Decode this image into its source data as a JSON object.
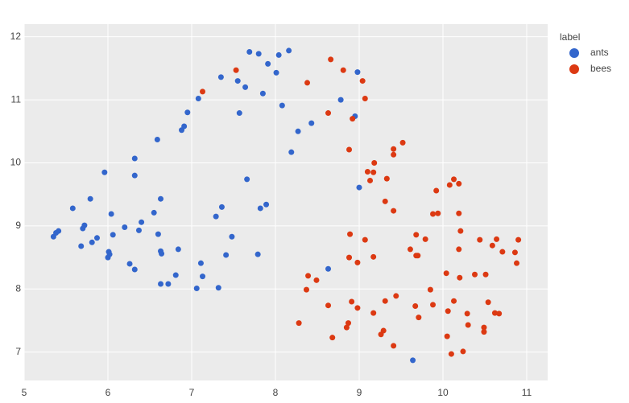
{
  "chart_data": {
    "type": "scatter",
    "legend_title": "label",
    "legend_position": "right",
    "xlim": [
      5,
      11.25
    ],
    "ylim": [
      6.55,
      12.2
    ],
    "xticks": [
      5,
      6,
      7,
      8,
      9,
      10,
      11
    ],
    "yticks": [
      7,
      8,
      9,
      10,
      11,
      12
    ],
    "grid": true,
    "series": [
      {
        "name": "ants",
        "color": "#3366cc",
        "x": [
          5.35,
          5.38,
          5.41,
          5.58,
          5.68,
          5.7,
          5.72,
          5.79,
          5.81,
          5.87,
          5.96,
          6.0,
          6.01,
          6.02,
          6.04,
          6.06,
          6.2,
          6.26,
          6.32,
          6.32,
          6.32,
          6.37,
          6.4,
          6.55,
          6.59,
          6.6,
          6.63,
          6.63,
          6.63,
          6.64,
          6.72,
          6.81,
          6.84,
          6.88,
          6.91,
          6.95,
          7.06,
          7.08,
          7.11,
          7.13,
          7.29,
          7.32,
          7.35,
          7.36,
          7.41,
          7.48,
          7.55,
          7.57,
          7.64,
          7.66,
          7.69,
          7.79,
          7.8,
          7.82,
          7.85,
          7.89,
          7.91,
          8.01,
          8.04,
          8.08,
          8.16,
          8.19,
          8.27,
          8.43,
          8.63,
          8.78,
          8.95,
          8.98,
          9.0,
          9.64
        ],
        "y": [
          8.83,
          8.89,
          8.92,
          9.28,
          8.68,
          8.96,
          9.01,
          9.43,
          8.74,
          8.81,
          9.85,
          8.5,
          8.59,
          8.55,
          9.19,
          8.86,
          8.98,
          8.4,
          10.07,
          9.8,
          8.31,
          8.93,
          9.06,
          9.21,
          10.37,
          8.87,
          9.43,
          8.08,
          8.6,
          8.56,
          8.08,
          8.22,
          8.63,
          10.52,
          10.58,
          10.8,
          8.01,
          11.02,
          8.41,
          8.2,
          9.15,
          8.02,
          11.36,
          9.3,
          8.54,
          8.83,
          11.3,
          10.79,
          11.2,
          9.74,
          11.76,
          8.55,
          11.73,
          9.28,
          11.1,
          9.34,
          11.57,
          11.43,
          11.71,
          10.91,
          11.78,
          10.17,
          10.5,
          10.63,
          8.32,
          11.0,
          10.74,
          11.44,
          9.61,
          6.87
        ]
      },
      {
        "name": "bees",
        "color": "#dc3912",
        "x": [
          7.13,
          7.53,
          8.38,
          8.66,
          8.63,
          8.81,
          8.92,
          9.04,
          9.07,
          8.88,
          9.17,
          9.1,
          9.13,
          9.18,
          9.33,
          9.41,
          9.41,
          9.52,
          9.31,
          9.41,
          9.92,
          10.08,
          10.13,
          10.19,
          9.88,
          9.94,
          10.19,
          10.21,
          8.89,
          9.07,
          9.61,
          9.68,
          9.79,
          8.88,
          8.98,
          9.17,
          8.39,
          8.49,
          8.37,
          8.63,
          8.91,
          8.98,
          9.17,
          9.31,
          9.44,
          9.67,
          9.68,
          9.7,
          9.85,
          9.88,
          10.04,
          10.06,
          10.13,
          10.2,
          10.19,
          10.05,
          10.1,
          10.24,
          10.29,
          10.3,
          10.38,
          10.44,
          10.51,
          10.54,
          10.49,
          10.49,
          10.59,
          10.62,
          10.64,
          10.67,
          10.71,
          10.86,
          10.88,
          10.9,
          9.26,
          9.29,
          9.41,
          9.71,
          8.68,
          8.85,
          8.87,
          8.28
        ],
        "y": [
          11.13,
          11.47,
          11.27,
          11.64,
          10.79,
          11.47,
          10.7,
          11.3,
          11.02,
          10.21,
          9.85,
          9.86,
          9.72,
          10.0,
          9.75,
          10.22,
          10.13,
          10.32,
          9.39,
          9.24,
          9.56,
          9.65,
          9.74,
          9.67,
          9.19,
          9.2,
          9.2,
          8.92,
          8.87,
          8.78,
          8.63,
          8.86,
          8.79,
          8.5,
          8.42,
          8.51,
          8.21,
          8.14,
          7.99,
          7.74,
          7.8,
          7.7,
          7.62,
          7.81,
          7.89,
          7.73,
          8.53,
          8.53,
          7.99,
          7.75,
          8.25,
          7.65,
          7.81,
          8.18,
          8.63,
          7.25,
          6.97,
          7.01,
          7.61,
          7.43,
          8.23,
          8.78,
          8.23,
          7.79,
          7.32,
          7.39,
          8.69,
          7.62,
          8.79,
          7.61,
          8.59,
          8.58,
          8.41,
          8.78,
          7.28,
          7.34,
          7.1,
          7.55,
          7.23,
          7.39,
          7.46,
          7.46
        ]
      }
    ]
  }
}
